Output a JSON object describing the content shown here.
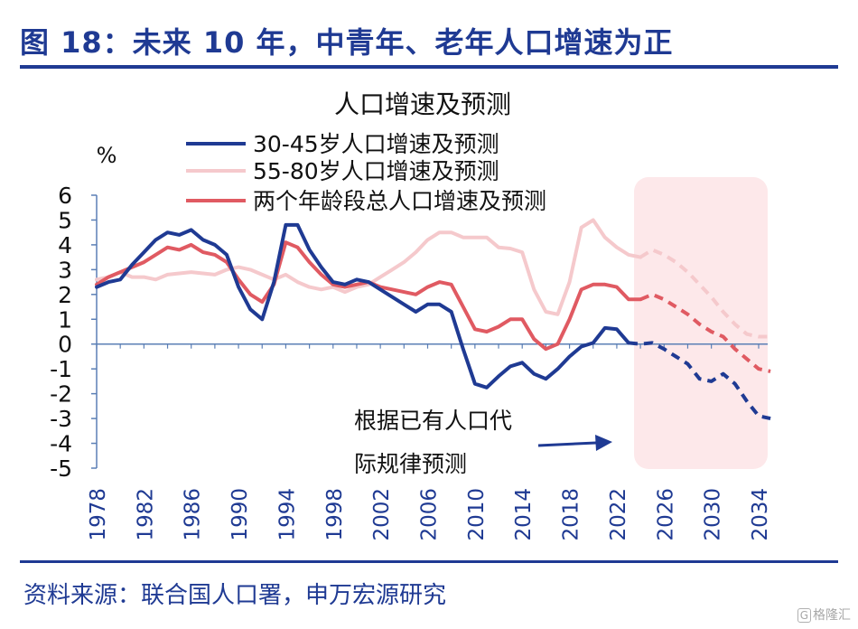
{
  "header": {
    "title": "图 18：未来 10 年，中青年、老年人口增速为正"
  },
  "footer": {
    "source": "资料来源：联合国人口署，申万宏源研究"
  },
  "watermark": {
    "mark": "G",
    "text": "格隆汇"
  },
  "colors": {
    "brand": "#1f3a93",
    "series_30_45": "#1f3a93",
    "series_55_80": "#f5c9cc",
    "series_total": "#e05a62",
    "forecast_band": "#fde8ea",
    "axis": "#5b7fb5"
  },
  "chart_data": {
    "type": "line",
    "title": "人口增速及预测",
    "ylabel": "%",
    "xlabel": "",
    "ylim": [
      -5,
      6
    ],
    "xlim": [
      1978,
      2034
    ],
    "yticks": [
      6,
      5,
      4,
      3,
      2,
      1,
      0,
      -1,
      -2,
      -3,
      -4,
      -5
    ],
    "xticks": [
      "1978",
      "1982",
      "1986",
      "1990",
      "1994",
      "1998",
      "2002",
      "2006",
      "2010",
      "2014",
      "2018",
      "2022",
      "2026",
      "2030",
      "2034"
    ],
    "grid": false,
    "legend_position": "top-left",
    "forecast_region": {
      "from": 2023,
      "to": 2034
    },
    "annotation": {
      "text_line1": "根据已有人口代",
      "text_line2": "际规律预测"
    },
    "series": [
      {
        "name": "30-45岁人口增速及预测",
        "color": "#1f3a93",
        "forecast_from": 2023,
        "points": [
          [
            1978,
            2.3
          ],
          [
            1979,
            2.5
          ],
          [
            1980,
            2.6
          ],
          [
            1981,
            3.2
          ],
          [
            1982,
            3.7
          ],
          [
            1983,
            4.2
          ],
          [
            1984,
            4.5
          ],
          [
            1985,
            4.4
          ],
          [
            1986,
            4.6
          ],
          [
            1987,
            4.2
          ],
          [
            1988,
            4.0
          ],
          [
            1989,
            3.6
          ],
          [
            1990,
            2.3
          ],
          [
            1991,
            1.4
          ],
          [
            1992,
            1.0
          ],
          [
            1993,
            2.5
          ],
          [
            1994,
            4.8
          ],
          [
            1995,
            4.8
          ],
          [
            1996,
            3.8
          ],
          [
            1997,
            3.1
          ],
          [
            1998,
            2.5
          ],
          [
            1999,
            2.4
          ],
          [
            2000,
            2.6
          ],
          [
            2001,
            2.5
          ],
          [
            2002,
            2.2
          ],
          [
            2003,
            1.9
          ],
          [
            2004,
            1.6
          ],
          [
            2005,
            1.3
          ],
          [
            2006,
            1.6
          ],
          [
            2007,
            1.6
          ],
          [
            2008,
            1.3
          ],
          [
            2009,
            -0.2
          ],
          [
            2010,
            -1.6
          ],
          [
            2011,
            -1.75
          ],
          [
            2012,
            -1.3
          ],
          [
            2013,
            -0.9
          ],
          [
            2014,
            -0.75
          ],
          [
            2015,
            -1.2
          ],
          [
            2016,
            -1.4
          ],
          [
            2017,
            -1.0
          ],
          [
            2018,
            -0.5
          ],
          [
            2019,
            -0.1
          ],
          [
            2020,
            0.05
          ],
          [
            2021,
            0.65
          ],
          [
            2022,
            0.6
          ],
          [
            2023,
            0.05
          ],
          [
            2024,
            0.0
          ],
          [
            2025,
            0.05
          ],
          [
            2026,
            -0.2
          ],
          [
            2027,
            -0.5
          ],
          [
            2028,
            -0.8
          ],
          [
            2029,
            -1.4
          ],
          [
            2030,
            -1.5
          ],
          [
            2031,
            -1.2
          ],
          [
            2032,
            -1.6
          ],
          [
            2033,
            -2.3
          ],
          [
            2034,
            -2.9
          ],
          [
            2035,
            -3.0
          ]
        ]
      },
      {
        "name": "55-80岁人口增速及预测",
        "color": "#f5c9cc",
        "forecast_from": 2024,
        "points": [
          [
            1978,
            2.6
          ],
          [
            1979,
            2.7
          ],
          [
            1980,
            2.9
          ],
          [
            1981,
            2.7
          ],
          [
            1982,
            2.7
          ],
          [
            1983,
            2.6
          ],
          [
            1984,
            2.8
          ],
          [
            1985,
            2.85
          ],
          [
            1986,
            2.9
          ],
          [
            1987,
            2.85
          ],
          [
            1988,
            2.8
          ],
          [
            1989,
            3.0
          ],
          [
            1990,
            3.1
          ],
          [
            1991,
            3.0
          ],
          [
            1992,
            2.8
          ],
          [
            1993,
            2.6
          ],
          [
            1994,
            2.8
          ],
          [
            1995,
            2.5
          ],
          [
            1996,
            2.3
          ],
          [
            1997,
            2.2
          ],
          [
            1998,
            2.3
          ],
          [
            1999,
            2.1
          ],
          [
            2000,
            2.3
          ],
          [
            2001,
            2.4
          ],
          [
            2002,
            2.7
          ],
          [
            2003,
            3.0
          ],
          [
            2004,
            3.3
          ],
          [
            2005,
            3.7
          ],
          [
            2006,
            4.2
          ],
          [
            2007,
            4.5
          ],
          [
            2008,
            4.5
          ],
          [
            2009,
            4.3
          ],
          [
            2010,
            4.3
          ],
          [
            2011,
            4.3
          ],
          [
            2012,
            3.9
          ],
          [
            2013,
            3.85
          ],
          [
            2014,
            3.7
          ],
          [
            2015,
            2.2
          ],
          [
            2016,
            1.3
          ],
          [
            2017,
            1.2
          ],
          [
            2018,
            2.5
          ],
          [
            2019,
            4.7
          ],
          [
            2020,
            5.0
          ],
          [
            2021,
            4.3
          ],
          [
            2022,
            3.9
          ],
          [
            2023,
            3.6
          ],
          [
            2024,
            3.5
          ],
          [
            2025,
            3.8
          ],
          [
            2026,
            3.6
          ],
          [
            2027,
            3.3
          ],
          [
            2028,
            2.9
          ],
          [
            2029,
            2.4
          ],
          [
            2030,
            1.9
          ],
          [
            2031,
            1.3
          ],
          [
            2032,
            0.8
          ],
          [
            2033,
            0.4
          ],
          [
            2034,
            0.3
          ],
          [
            2035,
            0.3
          ]
        ]
      },
      {
        "name": "两个年龄段总人口增速及预测",
        "color": "#e05a62",
        "forecast_from": 2024,
        "points": [
          [
            1978,
            2.4
          ],
          [
            1979,
            2.7
          ],
          [
            1980,
            2.9
          ],
          [
            1981,
            3.1
          ],
          [
            1982,
            3.3
          ],
          [
            1983,
            3.6
          ],
          [
            1984,
            3.9
          ],
          [
            1985,
            3.8
          ],
          [
            1986,
            4.0
          ],
          [
            1987,
            3.7
          ],
          [
            1988,
            3.6
          ],
          [
            1989,
            3.3
          ],
          [
            1990,
            2.6
          ],
          [
            1991,
            2.0
          ],
          [
            1992,
            1.7
          ],
          [
            1993,
            2.4
          ],
          [
            1994,
            4.1
          ],
          [
            1995,
            3.9
          ],
          [
            1996,
            3.3
          ],
          [
            1997,
            2.8
          ],
          [
            1998,
            2.4
          ],
          [
            1999,
            2.3
          ],
          [
            2000,
            2.4
          ],
          [
            2001,
            2.5
          ],
          [
            2002,
            2.3
          ],
          [
            2003,
            2.2
          ],
          [
            2004,
            2.1
          ],
          [
            2005,
            2.0
          ],
          [
            2006,
            2.3
          ],
          [
            2007,
            2.5
          ],
          [
            2008,
            2.4
          ],
          [
            2009,
            1.5
          ],
          [
            2010,
            0.6
          ],
          [
            2011,
            0.5
          ],
          [
            2012,
            0.7
          ],
          [
            2013,
            1.0
          ],
          [
            2014,
            1.0
          ],
          [
            2015,
            0.2
          ],
          [
            2016,
            -0.2
          ],
          [
            2017,
            0.0
          ],
          [
            2018,
            1.0
          ],
          [
            2019,
            2.2
          ],
          [
            2020,
            2.4
          ],
          [
            2021,
            2.4
          ],
          [
            2022,
            2.3
          ],
          [
            2023,
            1.8
          ],
          [
            2024,
            1.8
          ],
          [
            2025,
            2.0
          ],
          [
            2026,
            1.8
          ],
          [
            2027,
            1.5
          ],
          [
            2028,
            1.2
          ],
          [
            2029,
            0.8
          ],
          [
            2030,
            0.5
          ],
          [
            2031,
            0.3
          ],
          [
            2032,
            -0.2
          ],
          [
            2033,
            -0.6
          ],
          [
            2034,
            -1.0
          ],
          [
            2035,
            -1.1
          ]
        ]
      }
    ]
  }
}
